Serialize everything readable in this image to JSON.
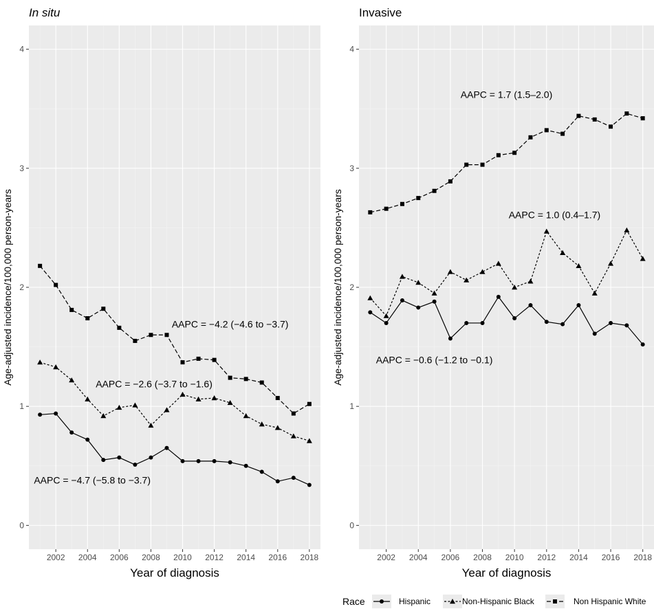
{
  "chart_data": [
    {
      "type": "line",
      "title": "In situ",
      "title_style": "italic",
      "xlabel": "Year of diagnosis",
      "ylabel": "Age-adjusted incidence/100,000 person-years",
      "xlim": [
        2000.3,
        2018.7
      ],
      "ylim": [
        -0.2,
        4.2
      ],
      "xticks": [
        "2002",
        "2004",
        "2006",
        "2008",
        "2010",
        "2012",
        "2014",
        "2016",
        "2018"
      ],
      "yticks": [
        "0",
        "1",
        "2",
        "3",
        "4"
      ],
      "grid": true,
      "x": [
        2001,
        2002,
        2003,
        2004,
        2005,
        2006,
        2007,
        2008,
        2009,
        2010,
        2011,
        2012,
        2013,
        2014,
        2015,
        2016,
        2017,
        2018
      ],
      "series": [
        {
          "name": "Hispanic",
          "marker": "circle",
          "dash": "solid",
          "values": [
            0.93,
            0.94,
            0.78,
            0.72,
            0.55,
            0.57,
            0.51,
            0.57,
            0.65,
            0.54,
            0.54,
            0.54,
            0.53,
            0.5,
            0.45,
            0.37,
            0.4,
            0.34
          ]
        },
        {
          "name": "Non-Hispanic Black",
          "marker": "triangle",
          "dash": "dotted",
          "values": [
            1.37,
            1.33,
            1.22,
            1.06,
            0.92,
            0.99,
            1.01,
            0.84,
            0.97,
            1.1,
            1.06,
            1.07,
            1.03,
            0.92,
            0.85,
            0.82,
            0.75,
            0.71
          ]
        },
        {
          "name": "Non Hispanic White",
          "marker": "square",
          "dash": "dashed",
          "values": [
            2.18,
            2.02,
            1.81,
            1.74,
            1.82,
            1.66,
            1.55,
            1.6,
            1.6,
            1.37,
            1.4,
            1.39,
            1.24,
            1.23,
            1.2,
            1.07,
            0.94,
            1.02
          ]
        }
      ],
      "annotations": [
        {
          "text": "AAPC = −4.2 (−4.6 to −3.7)",
          "x": 2013.0,
          "y": 1.69
        },
        {
          "text": "AAPC = −2.6 (−3.7 to −1.6)",
          "x": 2008.2,
          "y": 1.19
        },
        {
          "text": "AAPC = −4.7 (−5.8 to −3.7)",
          "x": 2004.3,
          "y": 0.38
        }
      ]
    },
    {
      "type": "line",
      "title": "Invasive",
      "title_style": "normal",
      "xlabel": "Year of diagnosis",
      "ylabel": "Age-adjusted incidence/100,000 person-years",
      "xlim": [
        2000.3,
        2018.7
      ],
      "ylim": [
        -0.2,
        4.2
      ],
      "xticks": [
        "2002",
        "2004",
        "2006",
        "2008",
        "2010",
        "2012",
        "2014",
        "2016",
        "2018"
      ],
      "yticks": [
        "0",
        "1",
        "2",
        "3",
        "4"
      ],
      "grid": true,
      "x": [
        2001,
        2002,
        2003,
        2004,
        2005,
        2006,
        2007,
        2008,
        2009,
        2010,
        2011,
        2012,
        2013,
        2014,
        2015,
        2016,
        2017,
        2018
      ],
      "series": [
        {
          "name": "Hispanic",
          "marker": "circle",
          "dash": "solid",
          "values": [
            1.79,
            1.7,
            1.89,
            1.83,
            1.88,
            1.57,
            1.7,
            1.7,
            1.92,
            1.74,
            1.85,
            1.71,
            1.69,
            1.85,
            1.61,
            1.7,
            1.68,
            1.52
          ]
        },
        {
          "name": "Non-Hispanic Black",
          "marker": "triangle",
          "dash": "dotted",
          "values": [
            1.91,
            1.76,
            2.09,
            2.04,
            1.95,
            2.13,
            2.06,
            2.13,
            2.2,
            2.0,
            2.05,
            2.47,
            2.29,
            2.18,
            1.95,
            2.2,
            2.48,
            2.24
          ]
        },
        {
          "name": "Non Hispanic White",
          "marker": "square",
          "dash": "dashed",
          "values": [
            2.63,
            2.66,
            2.7,
            2.75,
            2.81,
            2.89,
            3.03,
            3.03,
            3.11,
            3.13,
            3.26,
            3.32,
            3.29,
            3.44,
            3.41,
            3.35,
            3.46,
            3.42
          ]
        }
      ],
      "annotations": [
        {
          "text": "AAPC = 1.7 (1.5–2.0)",
          "x": 2009.5,
          "y": 3.62
        },
        {
          "text": "AAPC = 1.0 (0.4–1.7)",
          "x": 2012.5,
          "y": 2.61
        },
        {
          "text": "AAPC = −0.6 (−1.2 to −0.1)",
          "x": 2005.0,
          "y": 1.39
        }
      ]
    }
  ],
  "legend": {
    "title": "Race",
    "position": "bottom",
    "items": [
      {
        "label": "Hispanic",
        "marker": "circle",
        "dash": "solid"
      },
      {
        "label": "Non-Hispanic Black",
        "marker": "triangle",
        "dash": "dotted"
      },
      {
        "label": "Non Hispanic White",
        "marker": "square",
        "dash": "dashed"
      }
    ]
  },
  "colors": {
    "panel_bg": "#ebebeb",
    "grid_major": "#ffffff",
    "grid_minor": "#f4f4f4",
    "line": "#000000",
    "tick_text": "#4d4d4d"
  }
}
